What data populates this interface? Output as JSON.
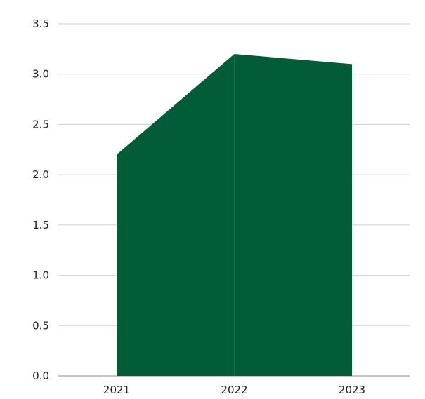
{
  "chart_data": {
    "type": "area",
    "title": "",
    "xlabel": "",
    "ylabel": "",
    "categories": [
      "2021",
      "2022",
      "2023"
    ],
    "series": [
      {
        "values": [
          2.2,
          3.2,
          3.1
        ],
        "color": "#035c38"
      }
    ],
    "ylim": [
      0,
      3.5
    ],
    "y_ticks": [
      "0.0",
      "0.5",
      "1.0",
      "1.5",
      "2.0",
      "2.5",
      "3.0",
      "3.5"
    ],
    "grid": true,
    "legend": "none"
  }
}
